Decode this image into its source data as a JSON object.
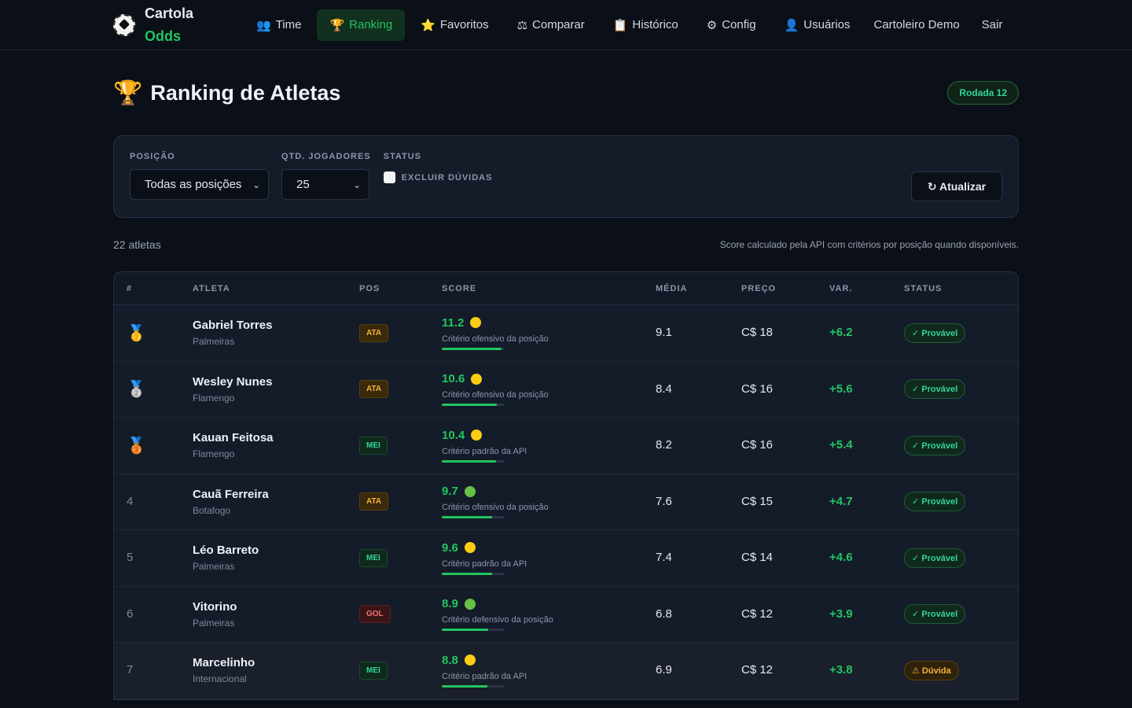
{
  "app": {
    "logo_line1": "Cartola",
    "logo_line2": "Odds"
  },
  "nav": [
    {
      "icon": "👥",
      "icon_name": "team-icon",
      "label": "Time",
      "active": false
    },
    {
      "icon": "🏆",
      "icon_name": "trophy-icon",
      "label": "Ranking",
      "active": true
    },
    {
      "icon": "⭐",
      "icon_name": "star-icon",
      "label": "Favoritos",
      "active": false
    },
    {
      "icon": "⚖",
      "icon_name": "balance-icon",
      "label": "Comparar",
      "active": false
    },
    {
      "icon": "📋",
      "icon_name": "clipboard-icon",
      "label": "Histórico",
      "active": false
    },
    {
      "icon": "⚙",
      "icon_name": "gear-icon",
      "label": "Config",
      "active": false
    },
    {
      "icon": "👤",
      "icon_name": "user-icon",
      "label": "Usuários",
      "active": false
    }
  ],
  "user_label": "Cartoleiro Demo",
  "logout_label": "Sair",
  "page": {
    "title": "Ranking de Atletas",
    "round_badge": "Rodada 12"
  },
  "filters": {
    "position_label": "POSIÇÃO",
    "position_value": "Todas as posições",
    "qty_label": "QTD. JOGADORES",
    "qty_value": "25",
    "status_label": "STATUS",
    "exclude_label": "EXCLUIR DÚVIDAS",
    "exclude_checked": false,
    "refresh_label": "↻ Atualizar"
  },
  "summary": {
    "count": "22 atletas",
    "note": "Score calculado pela API com critérios por posição quando disponíveis."
  },
  "table": {
    "headers": [
      "#",
      "ATLETA",
      "POS",
      "SCORE",
      "MÉDIA",
      "PREÇO",
      "VAR.",
      "STATUS"
    ],
    "rows": [
      {
        "rank": "🥇",
        "medal": "gold-medal-icon",
        "name": "Gabriel Torres",
        "club": "Palmeiras",
        "pos": "ATA",
        "score": "11.2",
        "dot": "yellow",
        "criterion": "Critério ofensivo da posição",
        "bar": 0.95,
        "media": "9.1",
        "price": "C$ 18",
        "var": "+6.2",
        "status": "✓ Provável",
        "status_type": "ok"
      },
      {
        "rank": "🥈",
        "medal": "silver-medal-icon",
        "name": "Wesley Nunes",
        "club": "Flamengo",
        "pos": "ATA",
        "score": "10.6",
        "dot": "yellow",
        "criterion": "Critério ofensivo da posição",
        "bar": 0.88,
        "media": "8.4",
        "price": "C$ 16",
        "var": "+5.6",
        "status": "✓ Provável",
        "status_type": "ok"
      },
      {
        "rank": "🥉",
        "medal": "bronze-medal-icon",
        "name": "Kauan Feitosa",
        "club": "Flamengo",
        "pos": "MEI",
        "score": "10.4",
        "dot": "yellow",
        "criterion": "Critério padrão da API",
        "bar": 0.86,
        "media": "8.2",
        "price": "C$ 16",
        "var": "+5.4",
        "status": "✓ Provável",
        "status_type": "ok"
      },
      {
        "rank": "4",
        "medal": "",
        "name": "Cauã Ferreira",
        "club": "Botafogo",
        "pos": "ATA",
        "score": "9.7",
        "dot": "green",
        "criterion": "Critério ofensivo da posição",
        "bar": 0.8,
        "media": "7.6",
        "price": "C$ 15",
        "var": "+4.7",
        "status": "✓ Provável",
        "status_type": "ok"
      },
      {
        "rank": "5",
        "medal": "",
        "name": "Léo Barreto",
        "club": "Palmeiras",
        "pos": "MEI",
        "score": "9.6",
        "dot": "yellow",
        "criterion": "Critério padrão da API",
        "bar": 0.8,
        "media": "7.4",
        "price": "C$ 14",
        "var": "+4.6",
        "status": "✓ Provável",
        "status_type": "ok"
      },
      {
        "rank": "6",
        "medal": "",
        "name": "Vitorino",
        "club": "Palmeiras",
        "pos": "GOL",
        "score": "8.9",
        "dot": "green",
        "criterion": "Critério defensivo da posição",
        "bar": 0.74,
        "media": "6.8",
        "price": "C$ 12",
        "var": "+3.9",
        "status": "✓ Provável",
        "status_type": "ok"
      },
      {
        "rank": "7",
        "medal": "",
        "name": "Marcelinho",
        "club": "Internacional",
        "pos": "MEI",
        "score": "8.8",
        "dot": "yellow",
        "criterion": "Critério padrão da API",
        "bar": 0.72,
        "media": "6.9",
        "price": "C$ 12",
        "var": "+3.8",
        "status": "⚠ Dúvida",
        "status_type": "dv"
      }
    ]
  }
}
